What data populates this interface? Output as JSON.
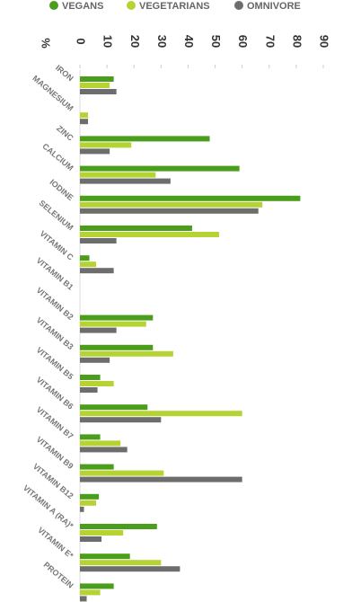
{
  "chart_data": {
    "type": "bar",
    "orientation": "horizontal",
    "x_label": "%",
    "categories": [
      "IRON",
      "MAGNESIUM",
      "ZINC",
      "CALCIUM",
      "IODINE",
      "SELENIUM",
      "VITAMIN C",
      "VITAMIN B1",
      "VITAMIN B2",
      "VITAMIN B3",
      "VITAMIN B5",
      "VITAMIN B6",
      "VITAMIN B7",
      "VITAMIN B9",
      "VITAMIN B12",
      "VITAMIN A (RA)*",
      "VITAMIN E*",
      "PROTEIN"
    ],
    "series": [
      {
        "name": "VEGANS",
        "color": "#4a9e1c",
        "values": [
          12.5,
          null,
          48,
          59,
          81.5,
          41.5,
          3.5,
          null,
          27,
          27,
          7.5,
          25,
          7.5,
          12.5,
          7,
          28.5,
          18.5,
          12.5
        ]
      },
      {
        "name": "VEGETARIANS",
        "color": "#b5d333",
        "values": [
          11,
          3,
          19,
          28,
          67.5,
          51.5,
          6,
          null,
          24.5,
          34.5,
          12.5,
          60,
          15,
          31,
          6,
          16,
          30,
          7.5
        ]
      },
      {
        "name": "OMNIVORE",
        "color": "#6d6d6d",
        "values": [
          13.5,
          3,
          11,
          33.5,
          66,
          13.5,
          12.5,
          null,
          13.5,
          11,
          6.5,
          30,
          17.5,
          60,
          1.5,
          8,
          37,
          2.5
        ]
      }
    ],
    "xlim": [
      0,
      90
    ],
    "xticks": [
      0,
      10,
      20,
      30,
      40,
      50,
      60,
      70,
      80,
      90
    ],
    "grid": false
  }
}
